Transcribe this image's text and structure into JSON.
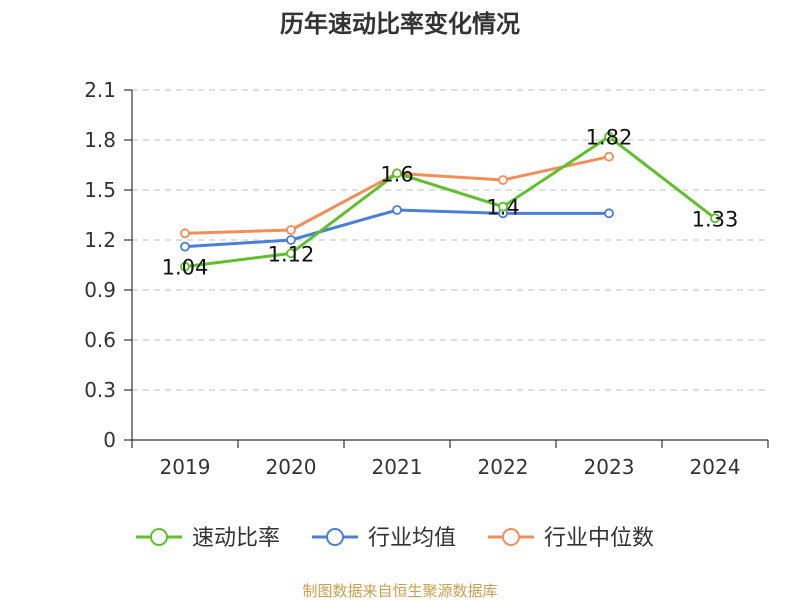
{
  "title": "历年速动比率变化情况",
  "source": "制图数据来自恒生聚源数据库",
  "colors": {
    "quick_ratio": "#5ec12c",
    "industry_mean": "#4a7fd6",
    "industry_median": "#f28e5a",
    "grid": "#cccccc",
    "axis": "#333333",
    "source_text": "#c8a04e"
  },
  "chart_data": {
    "type": "line",
    "title": "历年速动比率变化情况",
    "xlabel": "",
    "ylabel": "",
    "categories": [
      "2019",
      "2020",
      "2021",
      "2022",
      "2023",
      "2024"
    ],
    "ylim": [
      0,
      2.1
    ],
    "yticks": [
      "0",
      "0.3",
      "0.6",
      "0.9",
      "1.2",
      "1.5",
      "1.8",
      "2.1"
    ],
    "grid": "horizontal dashed",
    "legend_position": "bottom",
    "series": [
      {
        "name": "速动比率",
        "values": [
          1.04,
          1.12,
          1.6,
          1.4,
          1.82,
          1.33
        ],
        "labels": [
          "1.04",
          "1.12",
          "1.6",
          "1.4",
          "1.82",
          "1.33"
        ],
        "color": "#5ec12c"
      },
      {
        "name": "行业均值",
        "values": [
          1.16,
          1.2,
          1.38,
          1.36,
          1.36,
          null
        ],
        "color": "#4a7fd6"
      },
      {
        "name": "行业中位数",
        "values": [
          1.24,
          1.26,
          1.6,
          1.56,
          1.7,
          null
        ],
        "color": "#f28e5a"
      }
    ]
  }
}
